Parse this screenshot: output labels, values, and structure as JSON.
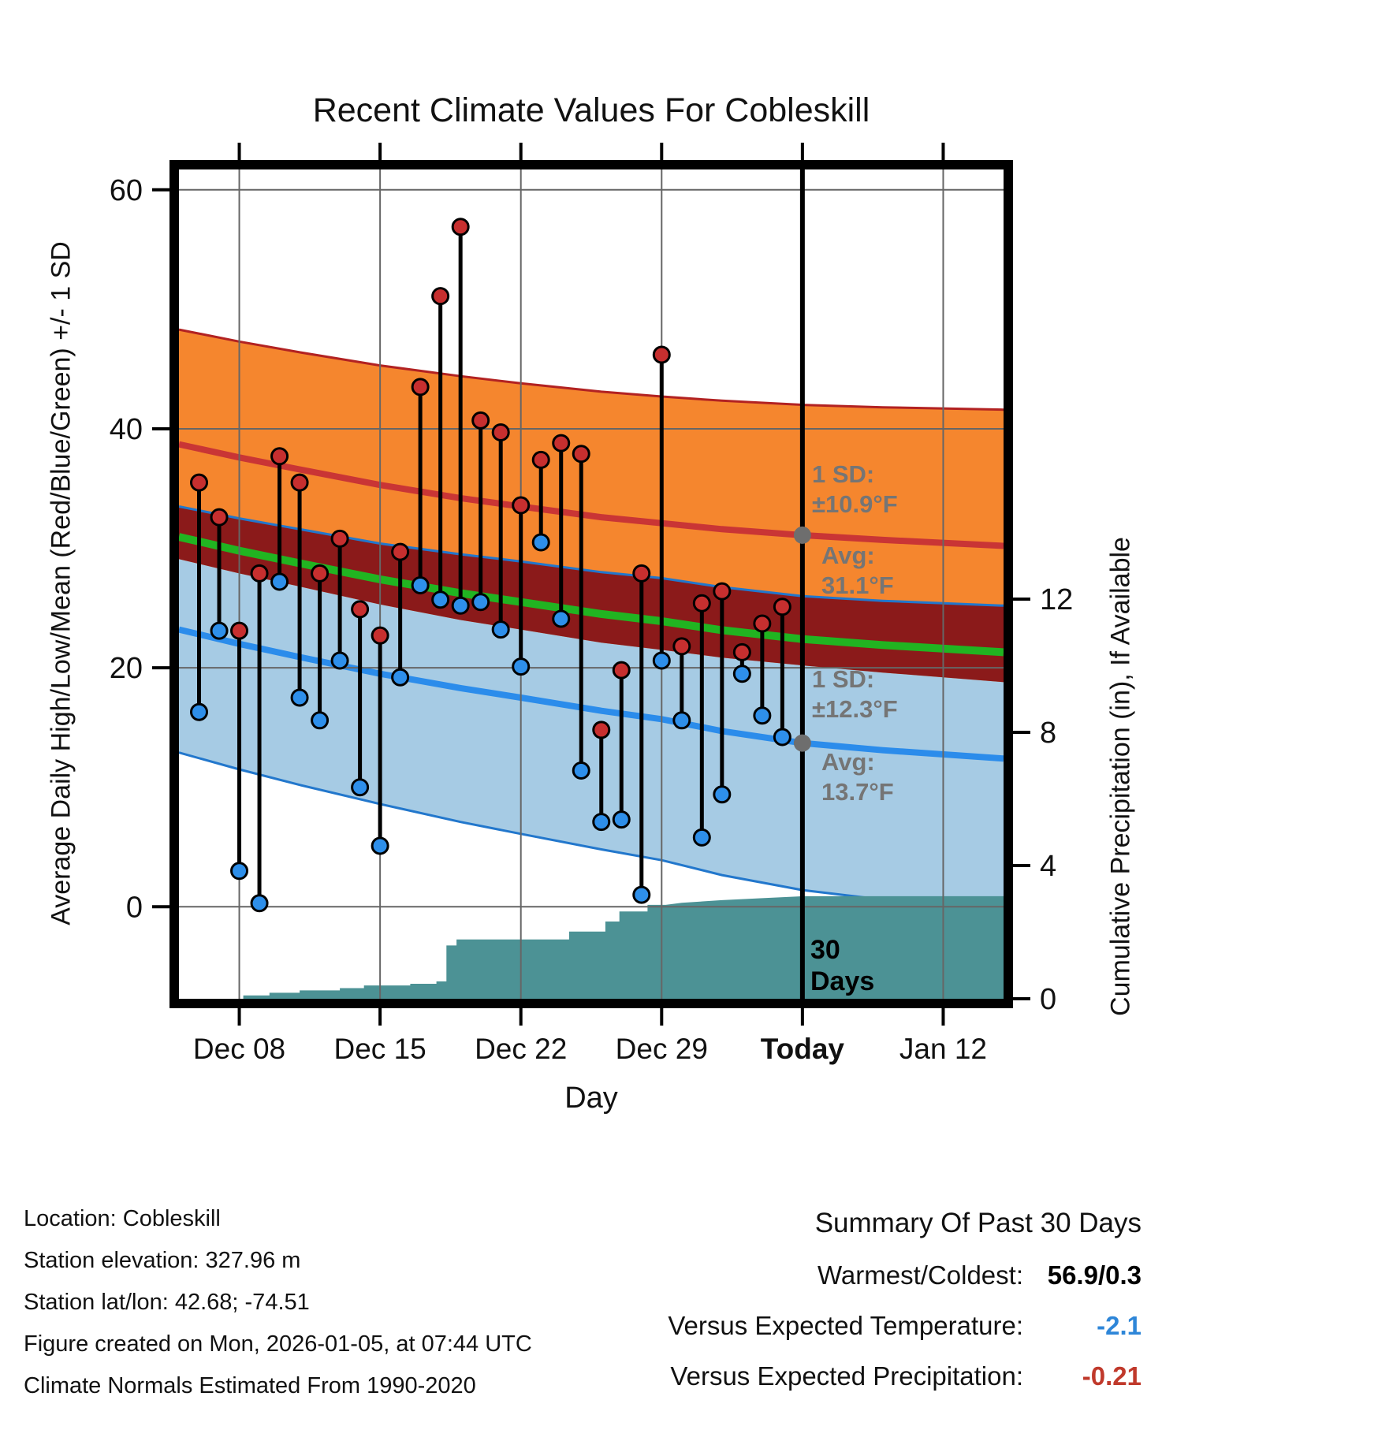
{
  "page": {
    "title": "Recent Climate Values For Cobleskill"
  },
  "footer": {
    "lines": [
      "Location: Cobleskill",
      "Station elevation: 327.96 m",
      "Station lat/lon: 42.68; -74.51",
      "Figure created on Mon, 2026-01-05, at 07:44 UTC",
      "Climate Normals Estimated From 1990-2020"
    ]
  },
  "summary": {
    "title": "Summary Of Past 30 Days",
    "rows": [
      {
        "label": "Warmest/Coldest:",
        "value": "56.9/0.3",
        "color": "#000000"
      },
      {
        "label": "Versus Expected Temperature:",
        "value": "-2.1",
        "color": "#2E86D8"
      },
      {
        "label": "Versus Expected Precipitation:",
        "value": "-0.21",
        "color": "#C0392B"
      }
    ]
  },
  "chart_data": {
    "type": "line",
    "title": "Recent Climate Values For Cobleskill",
    "xlabel": "Day",
    "ylabel_left": "Average Daily High/Low/Mean (Red/Blue/Green) +/- 1 SD",
    "ylabel_right": "Cumulative Precipitation (in), If Available",
    "x_domain_days": 41,
    "y_left_range": [
      -7.7,
      61.7
    ],
    "y_right_range": [
      0,
      24.9
    ],
    "grid": true,
    "x_ticks": [
      {
        "day": 3,
        "label": "Dec 08",
        "bold": false
      },
      {
        "day": 10,
        "label": "Dec 15",
        "bold": false
      },
      {
        "day": 17,
        "label": "Dec 22",
        "bold": false
      },
      {
        "day": 24,
        "label": "Dec 29",
        "bold": false
      },
      {
        "day": 31,
        "label": "Today",
        "bold": true
      },
      {
        "day": 38,
        "label": "Jan 12",
        "bold": false
      }
    ],
    "y_left_ticks": [
      {
        "value": 0,
        "label": "0"
      },
      {
        "value": 20,
        "label": "20"
      },
      {
        "value": 40,
        "label": "40"
      },
      {
        "value": 60,
        "label": "60"
      }
    ],
    "y_right_ticks": [
      {
        "value": 0,
        "label": "0"
      },
      {
        "value": 4,
        "label": "4"
      },
      {
        "value": 8,
        "label": "8"
      },
      {
        "value": 12,
        "label": "12"
      }
    ],
    "today_day": 31,
    "normals": {
      "days": [
        0,
        3,
        6,
        10,
        14,
        17,
        21,
        24,
        27,
        31,
        35,
        41
      ],
      "high_avg": [
        38.7,
        37.6,
        36.6,
        35.3,
        34.2,
        33.5,
        32.6,
        32.1,
        31.6,
        31.1,
        30.7,
        30.2
      ],
      "high_sd": [
        9.6,
        9.7,
        9.8,
        10.0,
        10.2,
        10.3,
        10.5,
        10.6,
        10.75,
        10.9,
        11.1,
        11.4
      ],
      "low_avg": [
        23.2,
        22.0,
        20.9,
        19.5,
        18.3,
        17.5,
        16.4,
        15.7,
        14.7,
        13.7,
        13.1,
        12.4
      ],
      "low_sd": [
        10.3,
        10.5,
        10.7,
        10.9,
        11.2,
        11.4,
        11.6,
        11.8,
        12.05,
        12.3,
        12.5,
        12.8
      ]
    },
    "observations": [
      {
        "day": 1,
        "date": "Dec 06",
        "high": 35.5,
        "low": 16.3
      },
      {
        "day": 2,
        "date": "Dec 07",
        "high": 32.6,
        "low": 23.1
      },
      {
        "day": 3,
        "date": "Dec 08",
        "high": 23.1,
        "low": 3.0
      },
      {
        "day": 4,
        "date": "Dec 09",
        "high": 27.9,
        "low": 0.3
      },
      {
        "day": 5,
        "date": "Dec 10",
        "high": 37.7,
        "low": 27.2
      },
      {
        "day": 6,
        "date": "Dec 11",
        "high": 35.5,
        "low": 17.5
      },
      {
        "day": 7,
        "date": "Dec 12",
        "high": 27.9,
        "low": 15.6
      },
      {
        "day": 8,
        "date": "Dec 13",
        "high": 30.8,
        "low": 20.6
      },
      {
        "day": 9,
        "date": "Dec 14",
        "high": 24.9,
        "low": 10.0
      },
      {
        "day": 10,
        "date": "Dec 15",
        "high": 22.7,
        "low": 5.1
      },
      {
        "day": 11,
        "date": "Dec 16",
        "high": 29.7,
        "low": 19.2
      },
      {
        "day": 12,
        "date": "Dec 17",
        "high": 43.5,
        "low": 26.9
      },
      {
        "day": 13,
        "date": "Dec 18",
        "high": 51.1,
        "low": 25.7
      },
      {
        "day": 14,
        "date": "Dec 19",
        "high": 56.9,
        "low": 25.2
      },
      {
        "day": 15,
        "date": "Dec 20",
        "high": 40.7,
        "low": 25.5
      },
      {
        "day": 16,
        "date": "Dec 21",
        "high": 39.7,
        "low": 23.2
      },
      {
        "day": 17,
        "date": "Dec 22",
        "high": 33.6,
        "low": 20.1
      },
      {
        "day": 18,
        "date": "Dec 23",
        "high": 37.4,
        "low": 30.5
      },
      {
        "day": 19,
        "date": "Dec 24",
        "high": 38.8,
        "low": 24.1
      },
      {
        "day": 20,
        "date": "Dec 25",
        "high": 37.9,
        "low": 11.4
      },
      {
        "day": 21,
        "date": "Dec 26",
        "high": 14.8,
        "low": 7.1
      },
      {
        "day": 22,
        "date": "Dec 27",
        "high": 19.8,
        "low": 7.3
      },
      {
        "day": 23,
        "date": "Dec 28",
        "high": 27.9,
        "low": 1.0
      },
      {
        "day": 24,
        "date": "Dec 29",
        "high": 46.2,
        "low": 20.6
      },
      {
        "day": 25,
        "date": "Dec 30",
        "high": 21.8,
        "low": 15.6
      },
      {
        "day": 26,
        "date": "Dec 31",
        "high": 25.4,
        "low": 5.8
      },
      {
        "day": 27,
        "date": "Jan 01",
        "high": 26.4,
        "low": 9.4
      },
      {
        "day": 28,
        "date": "Jan 02",
        "high": 21.3,
        "low": 19.5
      },
      {
        "day": 29,
        "date": "Jan 03",
        "high": 23.7,
        "low": 16.0
      },
      {
        "day": 30,
        "date": "Jan 04",
        "high": 25.1,
        "low": 14.2
      }
    ],
    "precip_steps": [
      [
        0,
        0
      ],
      [
        3.2,
        0
      ],
      [
        3.2,
        0.1
      ],
      [
        4.5,
        0.1
      ],
      [
        4.5,
        0.18
      ],
      [
        6,
        0.18
      ],
      [
        6,
        0.25
      ],
      [
        8,
        0.25
      ],
      [
        8,
        0.32
      ],
      [
        9.2,
        0.32
      ],
      [
        9.2,
        0.4
      ],
      [
        11.5,
        0.4
      ],
      [
        11.5,
        0.45
      ],
      [
        12.8,
        0.45
      ],
      [
        12.8,
        0.52
      ],
      [
        13.3,
        0.52
      ],
      [
        13.3,
        1.6
      ],
      [
        13.8,
        1.6
      ],
      [
        13.8,
        1.78
      ],
      [
        19.4,
        1.78
      ],
      [
        19.4,
        2.02
      ],
      [
        21.2,
        2.02
      ],
      [
        21.2,
        2.32
      ],
      [
        21.9,
        2.32
      ],
      [
        21.9,
        2.62
      ],
      [
        23.3,
        2.62
      ],
      [
        23.3,
        2.82
      ],
      [
        24.2,
        2.82
      ],
      [
        25,
        2.88
      ],
      [
        27,
        2.96
      ],
      [
        29,
        3.02
      ],
      [
        31,
        3.08
      ],
      [
        41,
        3.08
      ]
    ],
    "annotations": {
      "high_sd_label": [
        "1 SD:",
        "±10.9°F"
      ],
      "high_avg_label": [
        "Avg:",
        "31.1°F"
      ],
      "high_avg_value": 31.1,
      "low_sd_label": [
        "1 SD:",
        "±12.3°F"
      ],
      "low_avg_label": [
        "Avg:",
        "13.7°F"
      ],
      "low_avg_value": 13.7,
      "today_label": [
        "30",
        "Days"
      ]
    },
    "colors": {
      "band_high": "#F5862E",
      "band_high_edge": "#B22222",
      "band_low": "#A6CBE4",
      "band_low_edge": "#2277CC",
      "band_overlap": "#8B1A1A",
      "line_high": "#C93535",
      "line_low": "#2B8CEB",
      "line_mean": "#21B421",
      "dot_high": "#C72F2F",
      "dot_low": "#2E8FEA",
      "precip_fill": "#4C9295",
      "grid": "#666666",
      "today_line": "#000000",
      "frame": "#000000",
      "annotation_gray": "#757575",
      "marker_gray": "#6E6E6E"
    }
  }
}
